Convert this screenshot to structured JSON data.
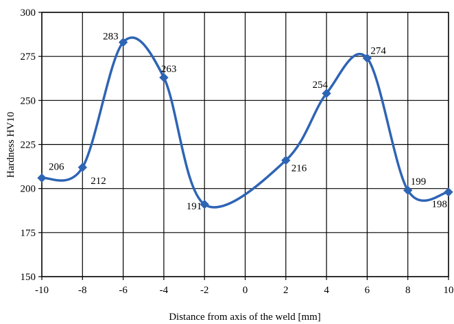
{
  "chart_data": {
    "type": "line",
    "smooth": true,
    "xlabel": "Distance from axis of the weld [mm]",
    "ylabel": "Hardness HV10",
    "xlim": [
      -10,
      10
    ],
    "ylim": [
      150,
      300
    ],
    "x_ticks": [
      -10,
      -8,
      -6,
      -4,
      -2,
      0,
      2,
      4,
      6,
      8,
      10
    ],
    "y_ticks": [
      150,
      175,
      200,
      225,
      250,
      275,
      300
    ],
    "grid": true,
    "legend": "none",
    "series": [
      {
        "color": "#2e64b4",
        "marker": "diamond",
        "x": [
          -10,
          -8,
          -6,
          -4,
          -2,
          2,
          4,
          6,
          8,
          10
        ],
        "y": [
          206,
          212,
          283,
          263,
          191,
          216,
          254,
          274,
          199,
          198
        ]
      }
    ],
    "data_labels": [
      "206",
      "212",
      "283",
      "263",
      "191",
      "216",
      "254",
      "274",
      "199",
      "198"
    ]
  }
}
